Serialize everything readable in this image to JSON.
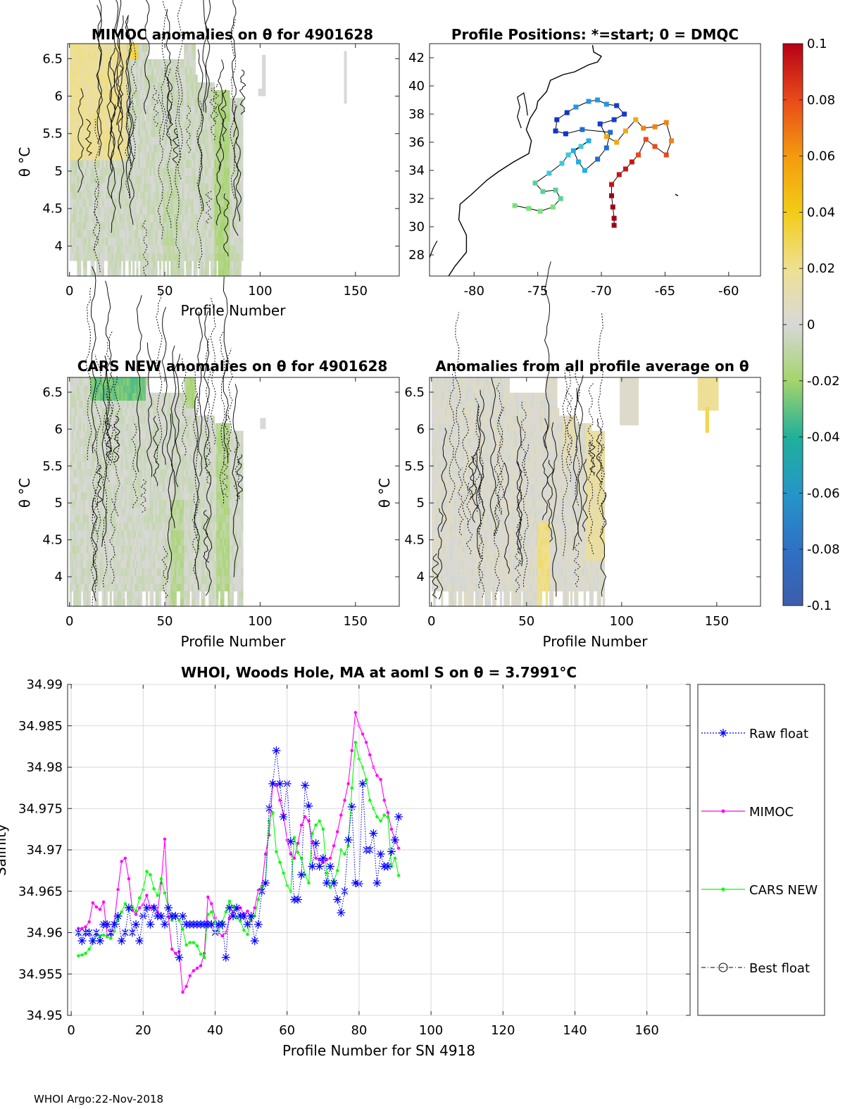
{
  "footer": "WHOI Argo:22-Nov-2018",
  "chart_data": [
    {
      "id": "mimoc",
      "type": "heatmap",
      "title": "MIMOC anomalies on θ  for 4901628",
      "xlabel": "Profile Number",
      "ylabel": "θ °C",
      "xlim": [
        -1,
        173
      ],
      "ylim": [
        3.6,
        6.7
      ],
      "xticks": [
        "0",
        "50",
        "100",
        "150"
      ],
      "yticks": [
        "4",
        "4.5",
        "5",
        "5.5",
        "6",
        "6.5"
      ],
      "data_extent": [
        0,
        91
      ]
    },
    {
      "id": "positions",
      "type": "scatter",
      "title": "Profile Positions: *=start; 0 = DMQC",
      "xlim": [
        -83.5,
        -57.5
      ],
      "ylim": [
        26.5,
        43
      ],
      "xticks": [
        "-80",
        "-75",
        "-70",
        "-65",
        "-60"
      ],
      "yticks": [
        "28",
        "30",
        "32",
        "34",
        "36",
        "38",
        "40",
        "42"
      ],
      "track": [
        [
          -76.8,
          31.5
        ],
        [
          -75.7,
          31.3
        ],
        [
          -74.8,
          31.1
        ],
        [
          -73.8,
          31.4
        ],
        [
          -73.2,
          32.0
        ],
        [
          -73.6,
          32.6
        ],
        [
          -74.6,
          32.5
        ],
        [
          -75.2,
          33.1
        ],
        [
          -74.1,
          33.8
        ],
        [
          -73.1,
          34.5
        ],
        [
          -72.6,
          35.1
        ],
        [
          -71.6,
          35.7
        ],
        [
          -71.0,
          36.1
        ],
        [
          -72.2,
          35.4
        ],
        [
          -71.8,
          34.6
        ],
        [
          -71.3,
          34.0
        ],
        [
          -70.3,
          34.8
        ],
        [
          -69.6,
          35.6
        ],
        [
          -69.3,
          36.7
        ],
        [
          -71.5,
          36.9
        ],
        [
          -72.8,
          36.6
        ],
        [
          -73.6,
          36.8
        ],
        [
          -73.5,
          37.6
        ],
        [
          -72.7,
          38.1
        ],
        [
          -72.0,
          38.5
        ],
        [
          -71.0,
          38.9
        ],
        [
          -70.3,
          39.0
        ],
        [
          -69.6,
          38.7
        ],
        [
          -68.8,
          38.6
        ],
        [
          -68.2,
          38.0
        ],
        [
          -69.0,
          37.6
        ],
        [
          -70.1,
          37.3
        ],
        [
          -69.6,
          36.4
        ],
        [
          -68.8,
          36.0
        ],
        [
          -68.1,
          36.8
        ],
        [
          -67.3,
          37.6
        ],
        [
          -66.7,
          37.0
        ],
        [
          -65.8,
          37.1
        ],
        [
          -64.9,
          37.4
        ],
        [
          -64.5,
          36.1
        ],
        [
          -64.9,
          35.1
        ],
        [
          -65.8,
          35.7
        ],
        [
          -66.5,
          36.2
        ],
        [
          -67.1,
          35.1
        ],
        [
          -67.6,
          34.6
        ],
        [
          -68.1,
          34.1
        ],
        [
          -68.6,
          33.7
        ],
        [
          -69.2,
          33.0
        ],
        [
          -69.2,
          32.2
        ],
        [
          -69.1,
          31.4
        ],
        [
          -69.0,
          30.6
        ],
        [
          -69.0,
          30.1
        ]
      ],
      "color_range": [
        -0.1,
        0.1
      ],
      "colorbar_ticks": [
        "0.1",
        "0.08",
        "0.06",
        "0.04",
        "0.02",
        "0",
        "-0.02",
        "-0.04",
        "-0.06",
        "-0.08",
        "-0.1"
      ]
    },
    {
      "id": "cars",
      "type": "heatmap",
      "title": "CARS NEW anomalies on θ for 4901628",
      "xlabel": "Profile Number",
      "ylabel": "θ °C",
      "xlim": [
        -1,
        173
      ],
      "ylim": [
        3.6,
        6.7
      ],
      "xticks": [
        "0",
        "50",
        "100",
        "150"
      ],
      "yticks": [
        "4",
        "4.5",
        "5",
        "5.5",
        "6",
        "6.5"
      ],
      "data_extent": [
        0,
        91
      ]
    },
    {
      "id": "average",
      "type": "heatmap",
      "title": "Anomalies from all profile average on θ",
      "xlabel": "Profile Number",
      "ylabel": "θ °C",
      "xlim": [
        -1,
        173
      ],
      "ylim": [
        3.6,
        6.7
      ],
      "xticks": [
        "0",
        "50",
        "100",
        "150"
      ],
      "yticks": [
        "4",
        "4.5",
        "5",
        "5.5",
        "6",
        "6.5"
      ],
      "data_extent": [
        0,
        91
      ]
    },
    {
      "id": "salinity",
      "type": "line",
      "title": "WHOI, Woods Hole, MA at aoml S on θ = 3.7991°C",
      "xlabel": "Profile Number for SN 4918",
      "ylabel": "Salinity",
      "xlim": [
        -1,
        172
      ],
      "ylim": [
        34.95,
        34.99
      ],
      "xticks": [
        "0",
        "20",
        "40",
        "60",
        "80",
        "100",
        "120",
        "140",
        "160"
      ],
      "yticks": [
        "34.95",
        "34.955",
        "34.96",
        "34.965",
        "34.97",
        "34.975",
        "34.98",
        "34.985",
        "34.99"
      ],
      "grid": true,
      "legend_position": "right",
      "series": [
        {
          "name": "Raw float",
          "color": "#0000ff",
          "x": [
            2,
            3,
            4,
            5,
            6,
            7,
            8,
            9,
            10,
            11,
            12,
            13,
            14,
            15,
            16,
            17,
            18,
            19,
            20,
            21,
            22,
            23,
            24,
            25,
            26,
            27,
            28,
            29,
            30,
            31,
            32,
            33,
            34,
            35,
            36,
            37,
            38,
            39,
            40,
            41,
            42,
            43,
            44,
            45,
            46,
            47,
            48,
            49,
            50,
            51,
            52,
            53,
            54,
            55,
            56,
            57,
            58,
            59,
            60,
            61,
            62,
            63,
            64,
            65,
            66,
            67,
            68,
            69,
            70,
            71,
            72,
            73,
            74,
            75,
            76,
            77,
            78,
            79,
            80,
            81,
            82,
            83,
            84,
            85,
            86,
            87,
            88,
            89,
            90,
            91
          ],
          "values": [
            34.96,
            34.959,
            34.96,
            34.96,
            34.959,
            34.96,
            34.959,
            34.961,
            34.961,
            34.96,
            34.961,
            34.962,
            34.959,
            34.96,
            34.963,
            34.96,
            34.961,
            34.959,
            34.962,
            34.963,
            34.961,
            34.963,
            34.962,
            34.962,
            34.961,
            34.963,
            34.962,
            34.962,
            34.957,
            34.962,
            34.961,
            34.961,
            34.961,
            34.961,
            34.961,
            34.961,
            34.961,
            34.961,
            34.96,
            34.961,
            34.961,
            34.957,
            34.963,
            34.962,
            34.963,
            34.962,
            34.962,
            34.961,
            34.962,
            34.959,
            34.961,
            34.965,
            34.966,
            34.975,
            34.978,
            34.982,
            34.978,
            34.974,
            34.978,
            34.971,
            34.964,
            34.964,
            34.967,
            34.9778,
            34.9753,
            34.968,
            34.9708,
            34.968,
            34.969,
            34.966,
            34.968,
            34.966,
            34.964,
            34.9624,
            34.965,
            34.9712,
            34.9752,
            34.966,
            34.9659,
            34.978,
            34.97,
            34.97,
            34.972,
            34.966,
            34.9695,
            34.968,
            34.968,
            34.9698,
            34.9712,
            34.974
          ]
        },
        {
          "name": "MIMOC",
          "color": "#ff00ff",
          "x": [
            2,
            3,
            4,
            5,
            6,
            7,
            8,
            9,
            10,
            11,
            12,
            13,
            14,
            15,
            16,
            17,
            18,
            19,
            20,
            21,
            22,
            23,
            24,
            25,
            26,
            27,
            28,
            29,
            30,
            31,
            32,
            33,
            34,
            35,
            36,
            37,
            38,
            39,
            40,
            41,
            42,
            43,
            44,
            45,
            46,
            47,
            48,
            49,
            50,
            51,
            52,
            53,
            54,
            55,
            56,
            57,
            58,
            59,
            60,
            61,
            62,
            63,
            64,
            65,
            66,
            67,
            68,
            69,
            70,
            71,
            72,
            73,
            74,
            75,
            76,
            77,
            78,
            79,
            80,
            81,
            82,
            83,
            84,
            85,
            86,
            87,
            88,
            89,
            90,
            91
          ],
          "values": [
            34.9605,
            34.9605,
            34.9607,
            34.9613,
            34.9636,
            34.9631,
            34.9628,
            34.9637,
            34.9596,
            34.9598,
            34.9612,
            34.9652,
            34.9686,
            34.969,
            34.9665,
            34.9627,
            34.9622,
            34.963,
            34.9634,
            34.9645,
            34.963,
            34.9632,
            34.9625,
            34.966,
            34.9713,
            34.9619,
            34.958,
            34.9575,
            34.9577,
            34.9528,
            34.9535,
            34.9548,
            34.9554,
            34.9557,
            34.956,
            34.9575,
            34.9643,
            34.9635,
            34.9618,
            34.96,
            34.9596,
            34.96,
            34.9617,
            34.9625,
            34.9629,
            34.963,
            34.9622,
            34.9626,
            34.9615,
            34.963,
            34.9651,
            34.9656,
            34.9695,
            34.9718,
            34.9781,
            34.9779,
            34.976,
            34.9742,
            34.9712,
            34.9695,
            34.969,
            34.9708,
            34.973,
            34.974,
            34.9735,
            34.971,
            34.969,
            34.9688,
            34.9685,
            34.9688,
            34.969,
            34.9705,
            34.9722,
            34.9742,
            34.976,
            34.978,
            34.982,
            34.9866,
            34.985,
            34.984,
            34.983,
            34.9815,
            34.98,
            34.979,
            34.9785,
            34.976,
            34.9745,
            34.9725,
            34.9712,
            34.9702
          ]
        },
        {
          "name": "CARS NEW",
          "color": "#00ff00",
          "x": [
            2,
            3,
            4,
            5,
            6,
            7,
            8,
            9,
            10,
            11,
            12,
            13,
            14,
            15,
            16,
            17,
            18,
            19,
            20,
            21,
            22,
            23,
            24,
            25,
            26,
            27,
            28,
            29,
            30,
            31,
            32,
            33,
            34,
            35,
            36,
            37,
            38,
            39,
            40,
            41,
            42,
            43,
            44,
            45,
            46,
            47,
            48,
            49,
            50,
            51,
            52,
            53,
            54,
            55,
            56,
            57,
            58,
            59,
            60,
            61,
            62,
            63,
            64,
            65,
            66,
            67,
            68,
            69,
            70,
            71,
            72,
            73,
            74,
            75,
            76,
            77,
            78,
            79,
            80,
            81,
            82,
            83,
            84,
            85,
            86,
            87,
            88,
            89,
            90,
            91
          ],
          "values": [
            34.9572,
            34.9573,
            34.9575,
            34.958,
            34.9589,
            34.9597,
            34.9596,
            34.9597,
            34.9595,
            34.9593,
            34.9601,
            34.9615,
            34.9625,
            34.9635,
            34.9628,
            34.9631,
            34.9626,
            34.9642,
            34.9652,
            34.9674,
            34.967,
            34.9653,
            34.9645,
            34.9665,
            34.9648,
            34.963,
            34.9615,
            34.962,
            34.9615,
            34.9604,
            34.9585,
            34.9588,
            34.9588,
            34.9584,
            34.9574,
            34.957,
            34.9622,
            34.9625,
            34.9612,
            34.9601,
            34.9613,
            34.9625,
            34.9638,
            34.9631,
            34.9618,
            34.9614,
            34.9603,
            34.9598,
            34.9618,
            34.962,
            34.964,
            34.9655,
            34.966,
            34.9735,
            34.9745,
            34.9698,
            34.9685,
            34.9672,
            34.9657,
            34.965,
            34.9715,
            34.9697,
            34.969,
            34.967,
            34.966,
            34.972,
            34.973,
            34.9735,
            34.9725,
            34.9672,
            34.9655,
            34.9662,
            34.9675,
            34.97,
            34.9695,
            34.9705,
            34.9775,
            34.983,
            34.981,
            34.98,
            34.9785,
            34.976,
            34.975,
            34.974,
            34.9735,
            34.9742,
            34.974,
            34.968,
            34.969,
            34.9669
          ]
        },
        {
          "name": "Best float",
          "color": "#000000",
          "x": [],
          "values": []
        }
      ]
    }
  ]
}
